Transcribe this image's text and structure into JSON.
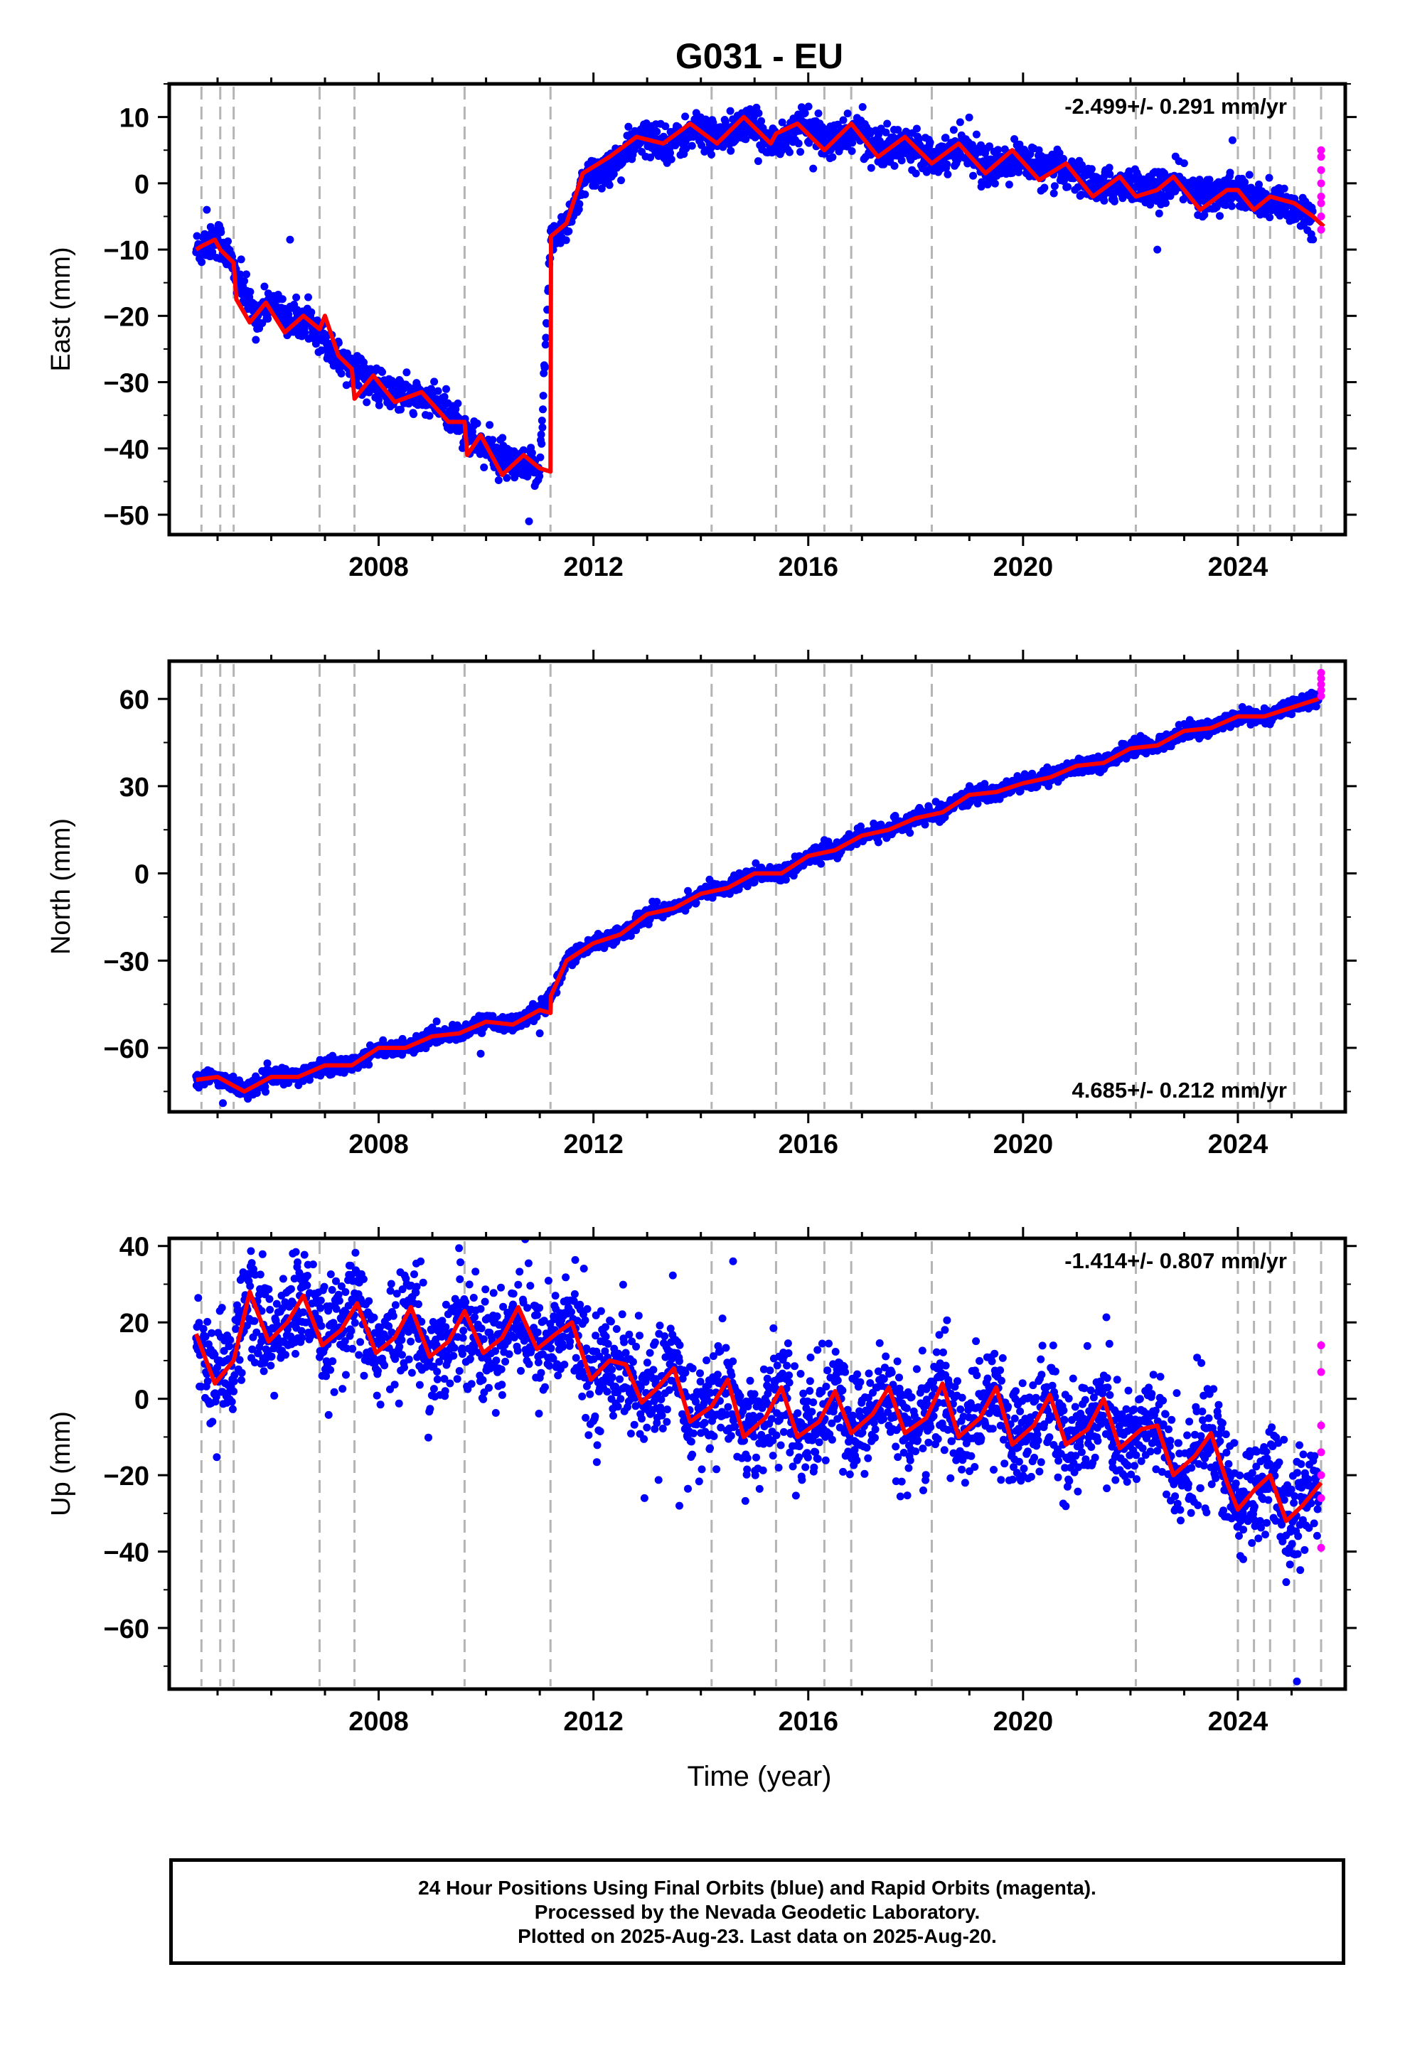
{
  "title": "G031 - EU",
  "xlabel": "Time (year)",
  "footer": {
    "line1": "24 Hour Positions Using Final Orbits (blue) and Rapid Orbits (magenta).",
    "line2": "Processed by the Nevada Geodetic Laboratory.",
    "line3": "Plotted on 2025-Aug-23. Last data on 2025-Aug-20."
  },
  "colors": {
    "final_orbits": "#0000ff",
    "rapid_orbits": "#ff00ff",
    "model": "#ff0000",
    "steps": "#b4b4b4"
  },
  "chart_data": [
    {
      "type": "scatter",
      "ylabel": "East (mm)",
      "rate_label": "-2.499+/- 0.291 mm/yr",
      "xlim": [
        2004.1,
        2026.0
      ],
      "ylim": [
        -53,
        15
      ],
      "yticks": [
        10,
        0,
        -10,
        -20,
        -30,
        -40,
        -50
      ],
      "xticks": [
        2008,
        2012,
        2016,
        2020,
        2024
      ],
      "grid": false,
      "step_dates": [
        2004.7,
        2005.05,
        2005.3,
        2006.9,
        2007.55,
        2009.6,
        2011.2,
        2014.2,
        2015.4,
        2016.3,
        2016.8,
        2018.3,
        2022.1,
        2024.0,
        2024.3,
        2024.6,
        2025.05,
        2025.55
      ],
      "model": {
        "x": [
          2004.6,
          2004.7,
          2004.95,
          2005.05,
          2005.3,
          2005.35,
          2005.6,
          2005.9,
          2006.25,
          2006.6,
          2006.9,
          2007.0,
          2007.25,
          2007.5,
          2007.55,
          2007.9,
          2008.3,
          2008.8,
          2009.3,
          2009.6,
          2009.65,
          2009.9,
          2010.3,
          2010.7,
          2011.0,
          2011.2,
          2011.21,
          2011.5,
          2011.8,
          2012.3,
          2012.8,
          2013.3,
          2013.8,
          2014.3,
          2014.8,
          2015.3,
          2015.4,
          2015.8,
          2016.3,
          2016.8,
          2017.3,
          2017.8,
          2018.3,
          2018.8,
          2019.3,
          2019.8,
          2020.3,
          2020.8,
          2021.3,
          2021.8,
          2022.1,
          2022.5,
          2022.8,
          2023.3,
          2023.8,
          2024.0,
          2024.3,
          2024.6,
          2025.05,
          2025.4,
          2025.6
        ],
        "y": [
          -10,
          -9.5,
          -8.5,
          -10,
          -12,
          -17.5,
          -21,
          -18,
          -22.5,
          -20,
          -22,
          -20,
          -26,
          -28,
          -32.5,
          -29,
          -33,
          -31.5,
          -36,
          -36,
          -41,
          -38,
          -44,
          -41,
          -43,
          -43.5,
          -8,
          -6,
          1.5,
          4,
          7,
          6,
          9,
          6,
          10,
          6,
          7.5,
          9,
          5,
          9,
          4,
          7,
          3,
          6,
          1.5,
          5,
          0.5,
          3,
          -2,
          1,
          -2,
          -1,
          1,
          -4,
          -1,
          -1,
          -4,
          -2,
          -3,
          -5,
          -6.5
        ]
      },
      "final": {
        "scatter_mm": 1.6,
        "x": [
          2004.6,
          2004.8,
          2005.0,
          2005.2,
          2005.4,
          2005.7,
          2006.0,
          2006.4,
          2006.8,
          2007.2,
          2007.6,
          2008.0,
          2008.5,
          2009.0,
          2009.5,
          2009.8,
          2010.2,
          2010.6,
          2011.0,
          2011.2,
          2011.5,
          2011.9,
          2012.4,
          2012.9,
          2013.4,
          2013.9,
          2014.4,
          2014.9,
          2015.4,
          2015.9,
          2016.4,
          2016.9,
          2017.4,
          2017.9,
          2018.4,
          2018.9,
          2019.4,
          2019.9,
          2020.4,
          2020.9,
          2021.4,
          2021.9,
          2022.4,
          2022.9,
          2023.4,
          2023.9,
          2024.4,
          2024.9,
          2025.4
        ],
        "y": [
          -10,
          -9,
          -8,
          -11,
          -15,
          -20,
          -18,
          -21,
          -21,
          -26,
          -28,
          -31,
          -32,
          -33,
          -36,
          -39,
          -41,
          -43,
          -43,
          -9,
          -6,
          1,
          3,
          7,
          6,
          8,
          7,
          9,
          6,
          9,
          6,
          8,
          5,
          6,
          4,
          6,
          2,
          4,
          2,
          2,
          -1,
          0,
          -1,
          0,
          -2,
          -1,
          -3,
          -3,
          -5
        ]
      },
      "outliers": [
        {
          "x": 2010.8,
          "y": -51
        },
        {
          "x": 2006.35,
          "y": -8.5
        },
        {
          "x": 2004.8,
          "y": -4
        },
        {
          "x": 2022.5,
          "y": -10
        },
        {
          "x": 2023.9,
          "y": 6.5
        }
      ],
      "rapid": {
        "x": 2025.55,
        "y": [
          5,
          4,
          2,
          0,
          -2,
          -3,
          -5,
          -7
        ]
      }
    },
    {
      "type": "scatter",
      "ylabel": "North (mm)",
      "rate_label": "4.685+/- 0.212 mm/yr",
      "xlim": [
        2004.1,
        2026.0
      ],
      "ylim": [
        -82,
        73
      ],
      "yticks": [
        60,
        30,
        0,
        -30,
        -60
      ],
      "xticks": [
        2008,
        2012,
        2016,
        2020,
        2024
      ],
      "grid": false,
      "step_dates": [
        2004.7,
        2005.05,
        2005.3,
        2006.9,
        2007.55,
        2009.6,
        2011.2,
        2014.2,
        2015.4,
        2016.3,
        2016.8,
        2018.3,
        2022.1,
        2024.0,
        2024.3,
        2024.6,
        2025.05,
        2025.55
      ],
      "model": {
        "x": [
          2004.6,
          2005.0,
          2005.3,
          2005.5,
          2006.0,
          2006.5,
          2007.0,
          2007.5,
          2008.0,
          2008.5,
          2009.0,
          2009.5,
          2010.0,
          2010.5,
          2011.0,
          2011.2,
          2011.21,
          2011.5,
          2012.0,
          2012.5,
          2013.0,
          2013.5,
          2014.0,
          2014.5,
          2015.0,
          2015.5,
          2016.0,
          2016.5,
          2017.0,
          2017.5,
          2018.0,
          2018.5,
          2019.0,
          2019.5,
          2020.0,
          2020.5,
          2021.0,
          2021.5,
          2022.0,
          2022.5,
          2023.0,
          2023.5,
          2024.0,
          2024.5,
          2025.0,
          2025.5
        ],
        "y": [
          -71,
          -70,
          -73,
          -75,
          -70,
          -70,
          -66,
          -66,
          -60,
          -60,
          -56,
          -55,
          -51,
          -52,
          -47,
          -48,
          -42,
          -30,
          -24,
          -21,
          -14,
          -12,
          -7,
          -5,
          0,
          0,
          6,
          8,
          13,
          15,
          19,
          21,
          27,
          28,
          31,
          33,
          37,
          38,
          43,
          44,
          49,
          50,
          54,
          54,
          57,
          60
        ]
      },
      "final": {
        "scatter_mm": 1.6,
        "x": [
          2004.6,
          2005.0,
          2005.3,
          2005.5,
          2006.0,
          2006.5,
          2007.0,
          2007.5,
          2008.0,
          2008.5,
          2009.0,
          2009.5,
          2010.0,
          2010.5,
          2011.0,
          2011.21,
          2011.5,
          2012.0,
          2012.5,
          2013.0,
          2013.5,
          2014.0,
          2014.5,
          2015.0,
          2015.5,
          2016.0,
          2016.5,
          2017.0,
          2017.5,
          2018.0,
          2018.5,
          2019.0,
          2019.5,
          2020.0,
          2020.5,
          2021.0,
          2021.5,
          2022.0,
          2022.5,
          2023.0,
          2023.5,
          2024.0,
          2024.5,
          2025.0,
          2025.5
        ],
        "y": [
          -71,
          -70,
          -73,
          -75,
          -70,
          -70,
          -66,
          -66,
          -60,
          -60,
          -56,
          -55,
          -51,
          -52,
          -47,
          -42,
          -30,
          -24,
          -21,
          -14,
          -12,
          -7,
          -5,
          0,
          0,
          6,
          8,
          13,
          15,
          19,
          21,
          27,
          28,
          31,
          33,
          37,
          38,
          43,
          44,
          49,
          50,
          54,
          54,
          57,
          60
        ]
      },
      "outliers": [
        {
          "x": 2009.9,
          "y": -62
        },
        {
          "x": 2011.0,
          "y": -55
        },
        {
          "x": 2005.1,
          "y": -79
        }
      ],
      "rapid": {
        "x": 2025.55,
        "y": [
          69,
          67,
          65,
          63,
          61
        ]
      }
    },
    {
      "type": "scatter",
      "ylabel": "Up (mm)",
      "rate_label": "-1.414+/- 0.807 mm/yr",
      "xlim": [
        2004.1,
        2026.0
      ],
      "ylim": [
        -76,
        42
      ],
      "yticks": [
        40,
        20,
        0,
        -20,
        -40,
        -60
      ],
      "xticks": [
        2008,
        2012,
        2016,
        2020,
        2024
      ],
      "grid": false,
      "step_dates": [
        2004.7,
        2005.05,
        2005.3,
        2006.9,
        2007.55,
        2009.6,
        2011.2,
        2014.2,
        2015.4,
        2016.3,
        2016.8,
        2018.3,
        2022.1,
        2024.0,
        2024.3,
        2024.6,
        2025.05,
        2025.55
      ],
      "model": {
        "x": [
          2004.6,
          2004.95,
          2005.3,
          2005.6,
          2005.95,
          2006.3,
          2006.6,
          2006.95,
          2007.3,
          2007.6,
          2007.95,
          2008.3,
          2008.6,
          2008.95,
          2009.3,
          2009.6,
          2009.95,
          2010.3,
          2010.6,
          2010.95,
          2011.3,
          2011.6,
          2011.95,
          2012.3,
          2012.6,
          2012.9,
          2013.2,
          2013.5,
          2013.8,
          2014.2,
          2014.5,
          2014.8,
          2015.2,
          2015.5,
          2015.8,
          2016.2,
          2016.5,
          2016.8,
          2017.2,
          2017.5,
          2017.8,
          2018.2,
          2018.5,
          2018.8,
          2019.2,
          2019.5,
          2019.8,
          2020.2,
          2020.5,
          2020.8,
          2021.2,
          2021.5,
          2021.8,
          2022.2,
          2022.5,
          2022.8,
          2023.2,
          2023.5,
          2023.8,
          2024.0,
          2024.3,
          2024.6,
          2024.9,
          2025.2,
          2025.55
        ],
        "y": [
          17,
          4,
          10,
          28,
          15,
          20,
          27,
          14,
          18,
          25,
          12,
          16,
          24,
          11,
          15,
          23,
          12,
          16,
          24,
          13,
          17,
          20,
          5,
          10,
          9,
          -1,
          3,
          8,
          -6,
          -2,
          5,
          -10,
          -5,
          3,
          -10,
          -6,
          2,
          -9,
          -4,
          3,
          -9,
          -5,
          4,
          -10,
          -5,
          3,
          -12,
          -7,
          1,
          -12,
          -8,
          0,
          -13,
          -8,
          -7,
          -20,
          -15,
          -9,
          -22,
          -29,
          -24,
          -20,
          -32,
          -28,
          -22
        ]
      },
      "final": {
        "scatter_mm": 9,
        "x": [
          2004.6,
          2004.95,
          2005.3,
          2005.6,
          2005.95,
          2006.3,
          2006.6,
          2006.95,
          2007.3,
          2007.6,
          2007.95,
          2008.3,
          2008.6,
          2008.95,
          2009.3,
          2009.6,
          2009.95,
          2010.3,
          2010.6,
          2010.95,
          2011.3,
          2011.6,
          2011.95,
          2012.3,
          2012.6,
          2012.9,
          2013.2,
          2013.5,
          2013.8,
          2014.2,
          2014.5,
          2014.8,
          2015.2,
          2015.5,
          2015.8,
          2016.2,
          2016.5,
          2016.8,
          2017.2,
          2017.5,
          2017.8,
          2018.2,
          2018.5,
          2018.8,
          2019.2,
          2019.5,
          2019.8,
          2020.2,
          2020.5,
          2020.8,
          2021.2,
          2021.5,
          2021.8,
          2022.2,
          2022.5,
          2022.8,
          2023.2,
          2023.5,
          2023.8,
          2024.0,
          2024.3,
          2024.6,
          2024.9,
          2025.2,
          2025.5
        ],
        "y": [
          17,
          4,
          10,
          28,
          15,
          20,
          27,
          14,
          18,
          25,
          12,
          16,
          24,
          11,
          15,
          23,
          12,
          16,
          24,
          13,
          17,
          20,
          5,
          10,
          9,
          -1,
          3,
          8,
          -6,
          -2,
          5,
          -10,
          -5,
          3,
          -10,
          -6,
          2,
          -9,
          -4,
          3,
          -9,
          -5,
          4,
          -10,
          -5,
          3,
          -12,
          -7,
          1,
          -12,
          -8,
          0,
          -13,
          -8,
          -7,
          -20,
          -15,
          -9,
          -22,
          -29,
          -24,
          -20,
          -32,
          -28,
          -22
        ]
      },
      "outliers": [
        {
          "x": 2025.1,
          "y": -74
        },
        {
          "x": 2024.9,
          "y": -48
        },
        {
          "x": 2014.6,
          "y": 36
        },
        {
          "x": 2012.95,
          "y": -26
        },
        {
          "x": 2013.6,
          "y": -28
        },
        {
          "x": 2024.1,
          "y": -42
        }
      ],
      "rapid": {
        "x": 2025.55,
        "y": [
          14,
          7,
          -7,
          -14,
          -20,
          -26,
          -39
        ]
      }
    }
  ]
}
